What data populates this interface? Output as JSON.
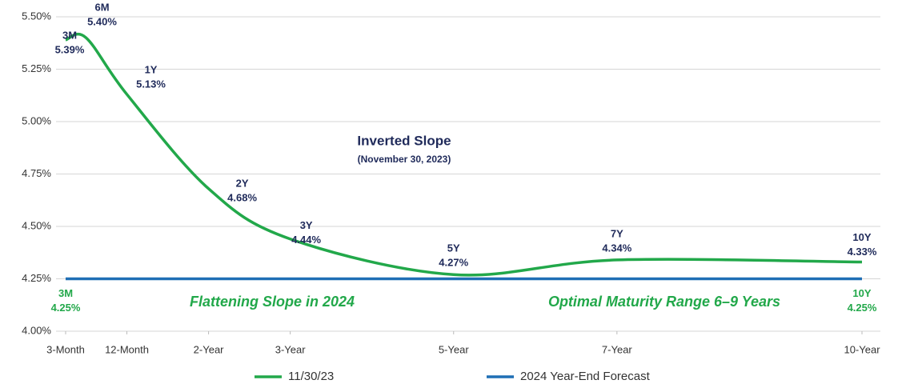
{
  "chart_data": {
    "type": "line",
    "xlim": [
      0.25,
      10
    ],
    "ylim": [
      4.0,
      5.5
    ],
    "xticks": [
      {
        "value": 0.25,
        "label": "3-Month"
      },
      {
        "value": 1,
        "label": "12-Month"
      },
      {
        "value": 2,
        "label": "2-Year"
      },
      {
        "value": 3,
        "label": "3-Year"
      },
      {
        "value": 5,
        "label": "5-Year"
      },
      {
        "value": 7,
        "label": "7-Year"
      },
      {
        "value": 10,
        "label": "10-Year"
      }
    ],
    "yticks": [
      {
        "value": 4.0,
        "label": "4.00%"
      },
      {
        "value": 4.25,
        "label": "4.25%"
      },
      {
        "value": 4.5,
        "label": "4.50%"
      },
      {
        "value": 4.75,
        "label": "4.75%"
      },
      {
        "value": 5.0,
        "label": "5.00%"
      },
      {
        "value": 5.25,
        "label": "5.25%"
      },
      {
        "value": 5.5,
        "label": "5.50%"
      }
    ],
    "grid": true,
    "series": [
      {
        "name": "11/30/23",
        "color": "#22a84a",
        "smooth": true,
        "x": [
          0.25,
          0.5,
          1,
          2,
          3,
          5,
          7,
          10
        ],
        "values": [
          5.39,
          5.4,
          5.13,
          4.68,
          4.44,
          4.27,
          4.34,
          4.33
        ],
        "point_labels": [
          "3M",
          "6M",
          "1Y",
          "2Y",
          "3Y",
          "5Y",
          "7Y",
          "10Y"
        ],
        "value_labels": [
          "5.39%",
          "5.40%",
          "5.13%",
          "4.68%",
          "4.44%",
          "4.27%",
          "4.34%",
          "4.33%"
        ]
      },
      {
        "name": "2024 Year-End Forecast",
        "color": "#1f6fb5",
        "smooth": false,
        "x": [
          0.25,
          10
        ],
        "values": [
          4.25,
          4.25
        ],
        "point_labels": [
          "3M",
          "10Y"
        ],
        "value_labels": [
          "4.25%",
          "4.25%"
        ]
      }
    ],
    "annotations": [
      "Inverted Slope",
      "(November 30, 2023)",
      "Flattening Slope in 2024",
      "Optimal Maturity Range 6–9 Years"
    ]
  }
}
